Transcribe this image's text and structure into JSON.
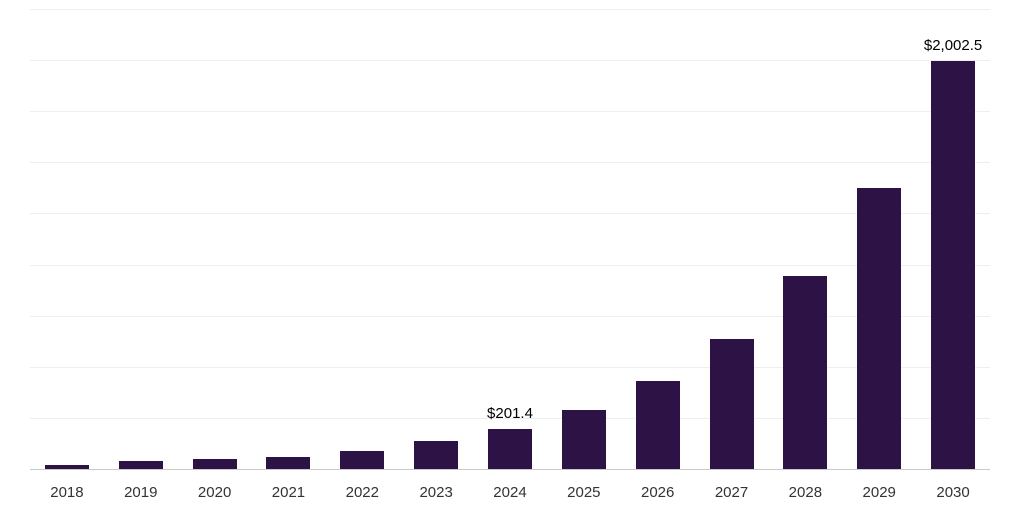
{
  "chart_data": {
    "type": "bar",
    "title": "",
    "xlabel": "",
    "ylabel": "",
    "categories": [
      "2018",
      "2019",
      "2020",
      "2021",
      "2022",
      "2023",
      "2024",
      "2025",
      "2026",
      "2027",
      "2028",
      "2029",
      "2030"
    ],
    "values": [
      25,
      45,
      55,
      63,
      92,
      140,
      201.4,
      296,
      437,
      640,
      950,
      1380,
      2002.5
    ],
    "bar_labels": [
      null,
      null,
      null,
      null,
      null,
      null,
      "$201.4",
      null,
      null,
      null,
      null,
      null,
      "$2,002.5"
    ],
    "ylim": [
      0,
      2250
    ],
    "gridline_step": 250,
    "grid": "horizontal",
    "legend": "none",
    "colors": {
      "bar": "#2d1245",
      "background": "#ffffff",
      "gridline": "#efefef",
      "axis_line": "#c9c9c9",
      "data_label": "#000000",
      "tick_label": "#333333"
    }
  }
}
